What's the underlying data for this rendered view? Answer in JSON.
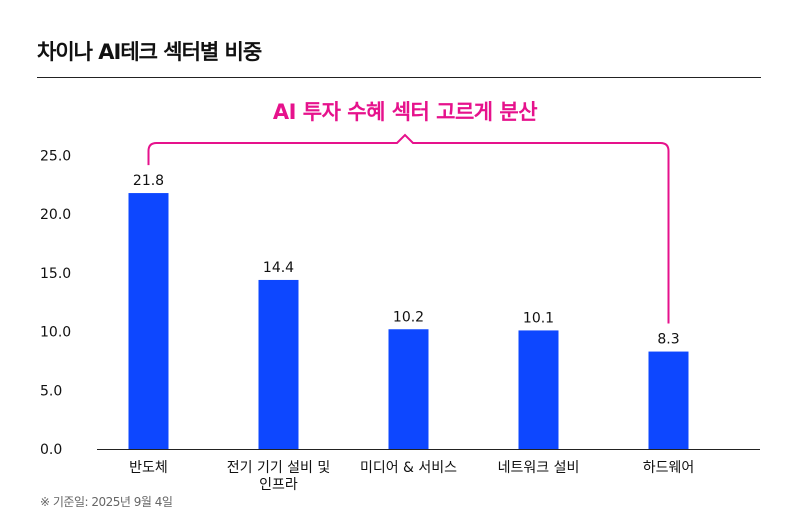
{
  "header": {
    "title": "차이나 AI테크 섹터별 비중"
  },
  "annotation": {
    "text": "AI 투자 수혜 섹터 고르게 분산",
    "color": "#e6128c"
  },
  "footnote": "※ 기준일: 2025년 9월 4일",
  "colors": {
    "bar": "#0d47ff",
    "axis": "#222222",
    "text": "#111111"
  },
  "chart_data": {
    "type": "bar",
    "title": "차이나 AI테크 섹터별 비중",
    "categories": [
      "반도체",
      "전기 기기 설비 및 인프라",
      "미디어 & 서비스",
      "네트워크 설비",
      "하드웨어"
    ],
    "category_lines": [
      [
        "반도체"
      ],
      [
        "전기 기기 설비 및",
        "인프라"
      ],
      [
        "미디어 & 서비스"
      ],
      [
        "네트워크 설비"
      ],
      [
        "하드웨어"
      ]
    ],
    "values": [
      21.8,
      14.4,
      10.2,
      10.1,
      8.3
    ],
    "value_labels": [
      "21.8",
      "14.4",
      "10.2",
      "10.1",
      "8.3"
    ],
    "yticks": [
      "0.0",
      "5.0",
      "10.0",
      "15.0",
      "20.0",
      "25.0"
    ],
    "ylim": [
      0,
      25
    ],
    "xlabel": "",
    "ylabel": "",
    "grid": false,
    "annotation_bracket": {
      "from_category": 0,
      "to_category": 4,
      "label": "AI 투자 수혜 섹터 고르게 분산"
    }
  }
}
